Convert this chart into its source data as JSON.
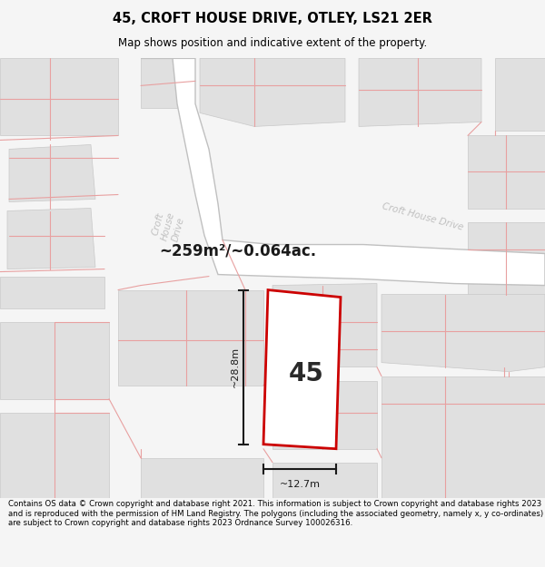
{
  "title": "45, CROFT HOUSE DRIVE, OTLEY, LS21 2ER",
  "subtitle": "Map shows position and indicative extent of the property.",
  "area_text": "~259m²/~0.064ac.",
  "label_45": "45",
  "dim_width": "~12.7m",
  "dim_height": "~28.8m",
  "footer": "Contains OS data © Crown copyright and database right 2021. This information is subject to Crown copyright and database rights 2023 and is reproduced with the permission of HM Land Registry. The polygons (including the associated geometry, namely x, y co-ordinates) are subject to Crown copyright and database rights 2023 Ordnance Survey 100026316.",
  "bg_color": "#f5f5f5",
  "map_bg": "#f0f0f0",
  "block_fill": "#e0e0e0",
  "block_edge": "#c8c8c8",
  "road_fill": "#ffffff",
  "road_edge": "#c0c0c0",
  "plot_fill": "#ffffff",
  "plot_edge": "#cc0000",
  "pink_line": "#e8a0a0",
  "dim_color": "#1a1a1a",
  "street_label_color": "#c0c0c0",
  "title_color": "#000000",
  "footer_color": "#000000",
  "area_text_color": "#1a1a1a"
}
